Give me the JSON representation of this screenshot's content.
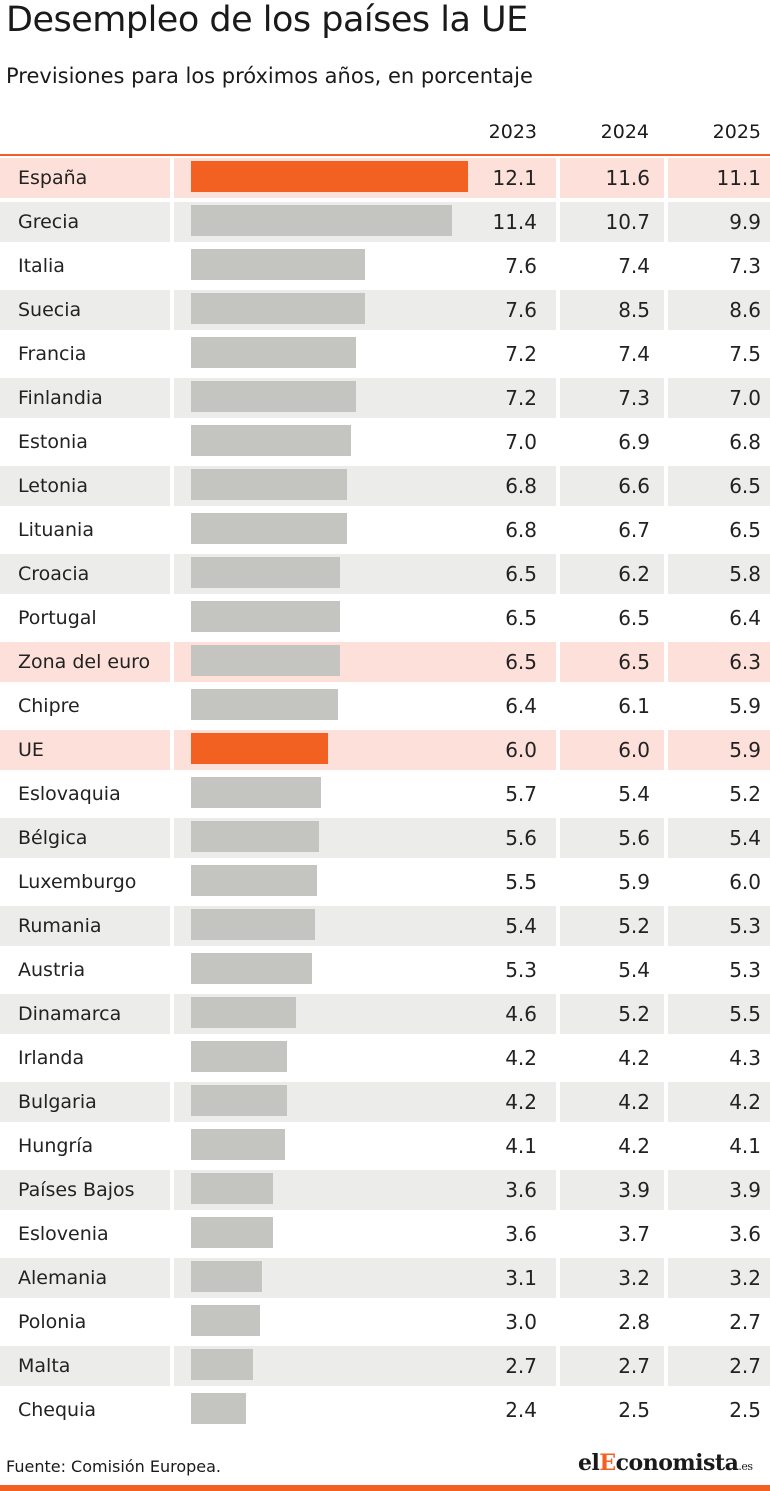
{
  "title": "Desempleo de los países la UE",
  "subtitle": "Previsiones para los próximos años, en porcentaje",
  "source": "Fuente: Comisión Europea.",
  "logo": {
    "part1": "el",
    "part2": "E",
    "part3": "conomista",
    "part4": ".es"
  },
  "colors": {
    "accent": "#f26122",
    "bar_default": "#c4c4c0",
    "row_alt": "#ecedeb",
    "row_highlight": "#fde0da"
  },
  "chart_data": {
    "type": "table",
    "columns": [
      "2023",
      "2024",
      "2025"
    ],
    "bar_column": "2023",
    "rows": [
      {
        "name": "España",
        "values": [
          "12.1",
          "11.6",
          "11.1"
        ],
        "highlight": true,
        "bar_highlight": true
      },
      {
        "name": "Grecia",
        "values": [
          "11.4",
          "10.7",
          "9.9"
        ]
      },
      {
        "name": "Italia",
        "values": [
          "7.6",
          "7.4",
          "7.3"
        ]
      },
      {
        "name": "Suecia",
        "values": [
          "7.6",
          "8.5",
          "8.6"
        ]
      },
      {
        "name": "Francia",
        "values": [
          "7.2",
          "7.4",
          "7.5"
        ]
      },
      {
        "name": "Finlandia",
        "values": [
          "7.2",
          "7.3",
          "7.0"
        ]
      },
      {
        "name": "Estonia",
        "values": [
          "7.0",
          "6.9",
          "6.8"
        ]
      },
      {
        "name": "Letonia",
        "values": [
          "6.8",
          "6.6",
          "6.5"
        ]
      },
      {
        "name": "Lituania",
        "values": [
          "6.8",
          "6.7",
          "6.5"
        ]
      },
      {
        "name": "Croacia",
        "values": [
          "6.5",
          "6.2",
          "5.8"
        ]
      },
      {
        "name": "Portugal",
        "values": [
          "6.5",
          "6.5",
          "6.4"
        ]
      },
      {
        "name": "Zona del euro",
        "values": [
          "6.5",
          "6.5",
          "6.3"
        ],
        "highlight": true
      },
      {
        "name": "Chipre",
        "values": [
          "6.4",
          "6.1",
          "5.9"
        ]
      },
      {
        "name": "UE",
        "values": [
          "6.0",
          "6.0",
          "5.9"
        ],
        "highlight": true,
        "bar_highlight": true
      },
      {
        "name": "Eslovaquia",
        "values": [
          "5.7",
          "5.4",
          "5.2"
        ]
      },
      {
        "name": "Bélgica",
        "values": [
          "5.6",
          "5.6",
          "5.4"
        ]
      },
      {
        "name": "Luxemburgo",
        "values": [
          "5.5",
          "5.9",
          "6.0"
        ]
      },
      {
        "name": "Rumania",
        "values": [
          "5.4",
          "5.2",
          "5.3"
        ]
      },
      {
        "name": "Austria",
        "values": [
          "5.3",
          "5.4",
          "5.3"
        ]
      },
      {
        "name": "Dinamarca",
        "values": [
          "4.6",
          "5.2",
          "5.5"
        ]
      },
      {
        "name": "Irlanda",
        "values": [
          "4.2",
          "4.2",
          "4.3"
        ]
      },
      {
        "name": "Bulgaria",
        "values": [
          "4.2",
          "4.2",
          "4.2"
        ]
      },
      {
        "name": "Hungría",
        "values": [
          "4.1",
          "4.2",
          "4.1"
        ]
      },
      {
        "name": "Países Bajos",
        "values": [
          "3.6",
          "3.9",
          "3.9"
        ]
      },
      {
        "name": "Eslovenia",
        "values": [
          "3.6",
          "3.7",
          "3.6"
        ]
      },
      {
        "name": "Alemania",
        "values": [
          "3.1",
          "3.2",
          "3.2"
        ]
      },
      {
        "name": "Polonia",
        "values": [
          "3.0",
          "2.8",
          "2.7"
        ]
      },
      {
        "name": "Malta",
        "values": [
          "2.7",
          "2.7",
          "2.7"
        ]
      },
      {
        "name": "Chequia",
        "values": [
          "2.4",
          "2.5",
          "2.5"
        ]
      }
    ]
  }
}
